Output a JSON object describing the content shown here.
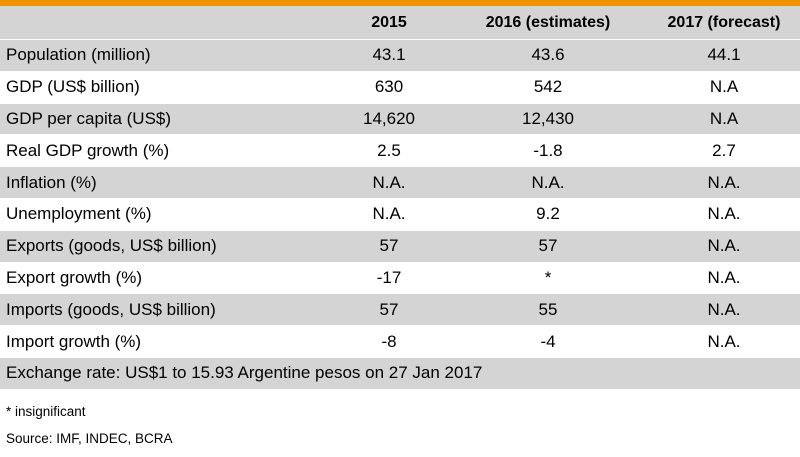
{
  "colors": {
    "accent_bar": "#f39200",
    "row_shade": "#d4d4d4",
    "row_plain": "#ffffff"
  },
  "table": {
    "headers": [
      "",
      "2015",
      "2016 (estimates)",
      "2017 (forecast)"
    ],
    "rows": [
      {
        "label": "Population  (million)",
        "y2015": "43.1",
        "y2016": "43.6",
        "y2017": "44.1"
      },
      {
        "label": "GDP (US$ billion)",
        "y2015": "630",
        "y2016": "542",
        "y2017": "N.A"
      },
      {
        "label": "GDP per capita (US$)",
        "y2015": "14,620",
        "y2016": "12,430",
        "y2017": "N.A"
      },
      {
        "label": "Real GDP growth (%)",
        "y2015": "2.5",
        "y2016": "-1.8",
        "y2017": "2.7"
      },
      {
        "label": "Inflation (%)",
        "y2015": "N.A.",
        "y2016": "N.A.",
        "y2017": "N.A."
      },
      {
        "label": "Unemployment  (%)",
        "y2015": "N.A.",
        "y2016": "9.2",
        "y2017": "N.A."
      },
      {
        "label": "Exports (goods, US$ billion)",
        "y2015": "57",
        "y2016": "57",
        "y2017": "N.A."
      },
      {
        "label": "Export growth (%)",
        "y2015": "-17",
        "y2016": "*",
        "y2017": "N.A."
      },
      {
        "label": "Imports (goods, US$ billion)",
        "y2015": "57",
        "y2016": "55",
        "y2017": "N.A."
      },
      {
        "label": "Import growth (%)",
        "y2015": "-8",
        "y2016": "-4",
        "y2017": "N.A."
      }
    ],
    "footer_row": "Exchange rate: US$1 to 15.93 Argentine pesos on 27 Jan 2017"
  },
  "notes": {
    "footnote": "* insignificant",
    "source": "Source: IMF, INDEC, BCRA"
  }
}
